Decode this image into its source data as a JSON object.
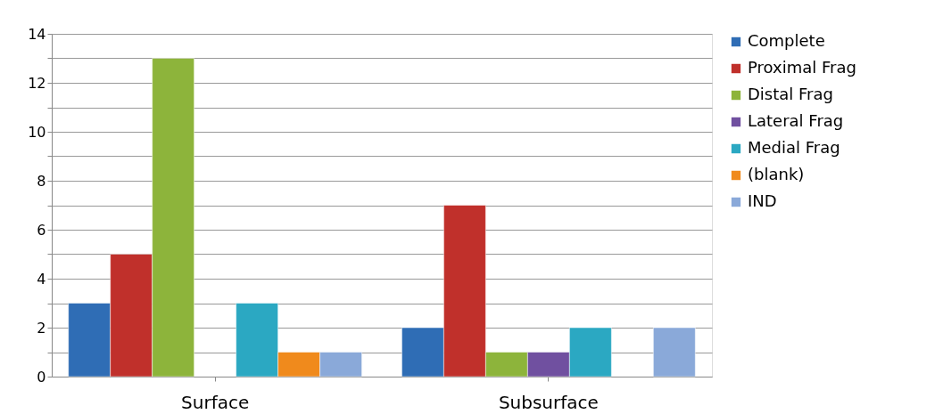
{
  "chart_data": {
    "type": "bar",
    "categories": [
      "Surface",
      "Subsurface"
    ],
    "series": [
      {
        "name": "Complete",
        "color": "#2f6db5",
        "values": [
          3,
          2
        ]
      },
      {
        "name": "Proximal Frag",
        "color": "#c0302b",
        "values": [
          5,
          7
        ]
      },
      {
        "name": "Distal Frag",
        "color": "#8db43b",
        "values": [
          13,
          1
        ]
      },
      {
        "name": "Lateral Frag",
        "color": "#7050a0",
        "values": [
          null,
          1
        ]
      },
      {
        "name": "Medial Frag",
        "color": "#2ba8c2",
        "values": [
          3,
          2
        ]
      },
      {
        "name": "(blank)",
        "color": "#f08a1c",
        "values": [
          1,
          null
        ]
      },
      {
        "name": "IND",
        "color": "#8aa9d9",
        "values": [
          1,
          2
        ]
      }
    ],
    "ylim": [
      0,
      14
    ],
    "yticks": [
      0,
      {
        "value": 1,
        "label": null
      },
      2,
      {
        "value": 3,
        "label": null
      },
      4,
      {
        "value": 5,
        "label": null
      },
      6,
      {
        "value": 7,
        "label": null
      },
      8,
      {
        "value": 9,
        "label": null
      },
      10,
      {
        "value": 11,
        "label": null
      },
      12,
      {
        "value": 13,
        "label": null
      },
      14
    ],
    "grid": "y",
    "legend": "right"
  }
}
